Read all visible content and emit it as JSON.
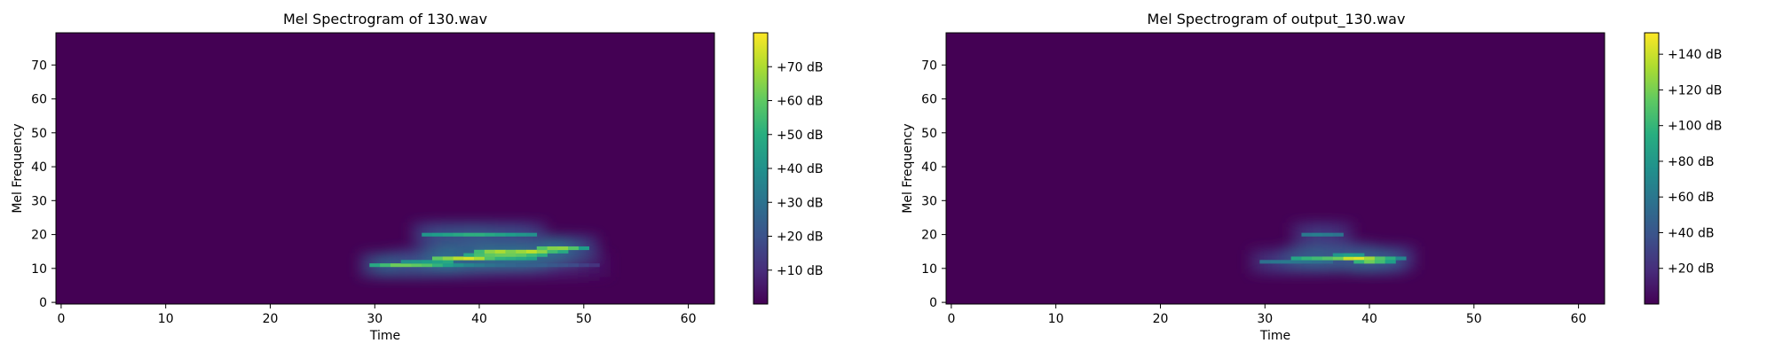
{
  "figure": {
    "background": "#ffffff"
  },
  "chart_data": [
    {
      "type": "heatmap",
      "title": "Mel Spectrogram of 130.wav",
      "xlabel": "Time",
      "ylabel": "Mel Frequency",
      "xlim": [
        -0.5,
        62.5
      ],
      "ylim": [
        -0.5,
        79.5
      ],
      "xticks": [
        "0",
        "10",
        "20",
        "30",
        "40",
        "50",
        "60"
      ],
      "yticks": [
        "0",
        "10",
        "20",
        "30",
        "40",
        "50",
        "60",
        "70"
      ],
      "colormap": "viridis",
      "background_color": "#440154",
      "colorbar": {
        "range": [
          0,
          80
        ],
        "ticks": [
          {
            "value": 10,
            "label": "+10 dB"
          },
          {
            "value": 20,
            "label": "+20 dB"
          },
          {
            "value": 30,
            "label": "+30 dB"
          },
          {
            "value": 40,
            "label": "+40 dB"
          },
          {
            "value": 50,
            "label": "+50 dB"
          },
          {
            "value": 60,
            "label": "+60 dB"
          },
          {
            "value": 70,
            "label": "+70 dB"
          }
        ]
      },
      "cells": [
        {
          "t": 30,
          "m": 11,
          "v": 48
        },
        {
          "t": 31,
          "m": 11,
          "v": 55
        },
        {
          "t": 32,
          "m": 11,
          "v": 62
        },
        {
          "t": 33,
          "m": 11,
          "v": 62
        },
        {
          "t": 34,
          "m": 11,
          "v": 60
        },
        {
          "t": 35,
          "m": 11,
          "v": 58
        },
        {
          "t": 36,
          "m": 11,
          "v": 52
        },
        {
          "t": 37,
          "m": 11,
          "v": 45
        },
        {
          "t": 38,
          "m": 11,
          "v": 40
        },
        {
          "t": 39,
          "m": 11,
          "v": 36
        },
        {
          "t": 40,
          "m": 11,
          "v": 33
        },
        {
          "t": 41,
          "m": 11,
          "v": 30
        },
        {
          "t": 42,
          "m": 11,
          "v": 28
        },
        {
          "t": 43,
          "m": 11,
          "v": 26
        },
        {
          "t": 44,
          "m": 11,
          "v": 25
        },
        {
          "t": 45,
          "m": 11,
          "v": 24
        },
        {
          "t": 46,
          "m": 11,
          "v": 24
        },
        {
          "t": 47,
          "m": 11,
          "v": 22
        },
        {
          "t": 48,
          "m": 11,
          "v": 20
        },
        {
          "t": 49,
          "m": 11,
          "v": 18
        },
        {
          "t": 50,
          "m": 11,
          "v": 15
        },
        {
          "t": 51,
          "m": 11,
          "v": 12
        },
        {
          "t": 33,
          "m": 12,
          "v": 40
        },
        {
          "t": 34,
          "m": 12,
          "v": 42
        },
        {
          "t": 35,
          "m": 12,
          "v": 44
        },
        {
          "t": 36,
          "m": 12,
          "v": 46
        },
        {
          "t": 37,
          "m": 12,
          "v": 48
        },
        {
          "t": 36,
          "m": 13,
          "v": 60
        },
        {
          "t": 37,
          "m": 13,
          "v": 66
        },
        {
          "t": 38,
          "m": 13,
          "v": 72
        },
        {
          "t": 39,
          "m": 13,
          "v": 75
        },
        {
          "t": 40,
          "m": 13,
          "v": 70
        },
        {
          "t": 41,
          "m": 13,
          "v": 58
        },
        {
          "t": 42,
          "m": 13,
          "v": 52
        },
        {
          "t": 43,
          "m": 13,
          "v": 50
        },
        {
          "t": 44,
          "m": 13,
          "v": 48
        },
        {
          "t": 45,
          "m": 13,
          "v": 46
        },
        {
          "t": 39,
          "m": 14,
          "v": 48
        },
        {
          "t": 40,
          "m": 14,
          "v": 56
        },
        {
          "t": 41,
          "m": 14,
          "v": 60
        },
        {
          "t": 42,
          "m": 14,
          "v": 62
        },
        {
          "t": 43,
          "m": 14,
          "v": 62
        },
        {
          "t": 44,
          "m": 14,
          "v": 60
        },
        {
          "t": 45,
          "m": 14,
          "v": 55
        },
        {
          "t": 46,
          "m": 14,
          "v": 50
        },
        {
          "t": 40,
          "m": 15,
          "v": 55
        },
        {
          "t": 41,
          "m": 15,
          "v": 66
        },
        {
          "t": 42,
          "m": 15,
          "v": 70
        },
        {
          "t": 43,
          "m": 15,
          "v": 64
        },
        {
          "t": 44,
          "m": 15,
          "v": 68
        },
        {
          "t": 45,
          "m": 15,
          "v": 72
        },
        {
          "t": 46,
          "m": 15,
          "v": 66
        },
        {
          "t": 47,
          "m": 15,
          "v": 55
        },
        {
          "t": 48,
          "m": 15,
          "v": 48
        },
        {
          "t": 46,
          "m": 16,
          "v": 58
        },
        {
          "t": 47,
          "m": 16,
          "v": 65
        },
        {
          "t": 48,
          "m": 16,
          "v": 66
        },
        {
          "t": 49,
          "m": 16,
          "v": 58
        },
        {
          "t": 50,
          "m": 16,
          "v": 44
        },
        {
          "t": 35,
          "m": 20,
          "v": 42
        },
        {
          "t": 36,
          "m": 20,
          "v": 44
        },
        {
          "t": 37,
          "m": 20,
          "v": 46
        },
        {
          "t": 38,
          "m": 20,
          "v": 48
        },
        {
          "t": 39,
          "m": 20,
          "v": 50
        },
        {
          "t": 40,
          "m": 20,
          "v": 50
        },
        {
          "t": 41,
          "m": 20,
          "v": 48
        },
        {
          "t": 42,
          "m": 20,
          "v": 46
        },
        {
          "t": 43,
          "m": 20,
          "v": 44
        },
        {
          "t": 44,
          "m": 20,
          "v": 42
        },
        {
          "t": 45,
          "m": 20,
          "v": 40
        }
      ]
    },
    {
      "type": "heatmap",
      "title": "Mel Spectrogram of output_130.wav",
      "xlabel": "Time",
      "ylabel": "Mel Frequency",
      "xlim": [
        -0.5,
        62.5
      ],
      "ylim": [
        -0.5,
        79.5
      ],
      "xticks": [
        "0",
        "10",
        "20",
        "30",
        "40",
        "50",
        "60"
      ],
      "yticks": [
        "0",
        "10",
        "20",
        "30",
        "40",
        "50",
        "60",
        "70"
      ],
      "colormap": "viridis",
      "background_color": "#440154",
      "colorbar": {
        "range": [
          0,
          152
        ],
        "ticks": [
          {
            "value": 20,
            "label": "+20 dB"
          },
          {
            "value": 40,
            "label": "+40 dB"
          },
          {
            "value": 60,
            "label": "+60 dB"
          },
          {
            "value": 80,
            "label": "+80 dB"
          },
          {
            "value": 100,
            "label": "+100 dB"
          },
          {
            "value": 120,
            "label": "+120 dB"
          },
          {
            "value": 140,
            "label": "+140 dB"
          }
        ]
      },
      "cells": [
        {
          "t": 30,
          "m": 12,
          "v": 55
        },
        {
          "t": 31,
          "m": 12,
          "v": 60
        },
        {
          "t": 32,
          "m": 12,
          "v": 62
        },
        {
          "t": 33,
          "m": 12,
          "v": 60
        },
        {
          "t": 34,
          "m": 12,
          "v": 58
        },
        {
          "t": 35,
          "m": 12,
          "v": 55
        },
        {
          "t": 36,
          "m": 12,
          "v": 52
        },
        {
          "t": 33,
          "m": 13,
          "v": 90
        },
        {
          "t": 34,
          "m": 13,
          "v": 100
        },
        {
          "t": 35,
          "m": 13,
          "v": 105
        },
        {
          "t": 36,
          "m": 13,
          "v": 110
        },
        {
          "t": 37,
          "m": 13,
          "v": 118
        },
        {
          "t": 38,
          "m": 13,
          "v": 140
        },
        {
          "t": 39,
          "m": 13,
          "v": 145
        },
        {
          "t": 40,
          "m": 13,
          "v": 130
        },
        {
          "t": 41,
          "m": 13,
          "v": 110
        },
        {
          "t": 42,
          "m": 13,
          "v": 95
        },
        {
          "t": 43,
          "m": 13,
          "v": 70
        },
        {
          "t": 39,
          "m": 12,
          "v": 100
        },
        {
          "t": 40,
          "m": 12,
          "v": 118
        },
        {
          "t": 41,
          "m": 12,
          "v": 105
        },
        {
          "t": 42,
          "m": 12,
          "v": 85
        },
        {
          "t": 37,
          "m": 14,
          "v": 80
        },
        {
          "t": 38,
          "m": 14,
          "v": 85
        },
        {
          "t": 39,
          "m": 14,
          "v": 82
        },
        {
          "t": 34,
          "m": 20,
          "v": 62
        },
        {
          "t": 35,
          "m": 20,
          "v": 65
        },
        {
          "t": 36,
          "m": 20,
          "v": 62
        },
        {
          "t": 37,
          "m": 20,
          "v": 58
        }
      ]
    }
  ]
}
